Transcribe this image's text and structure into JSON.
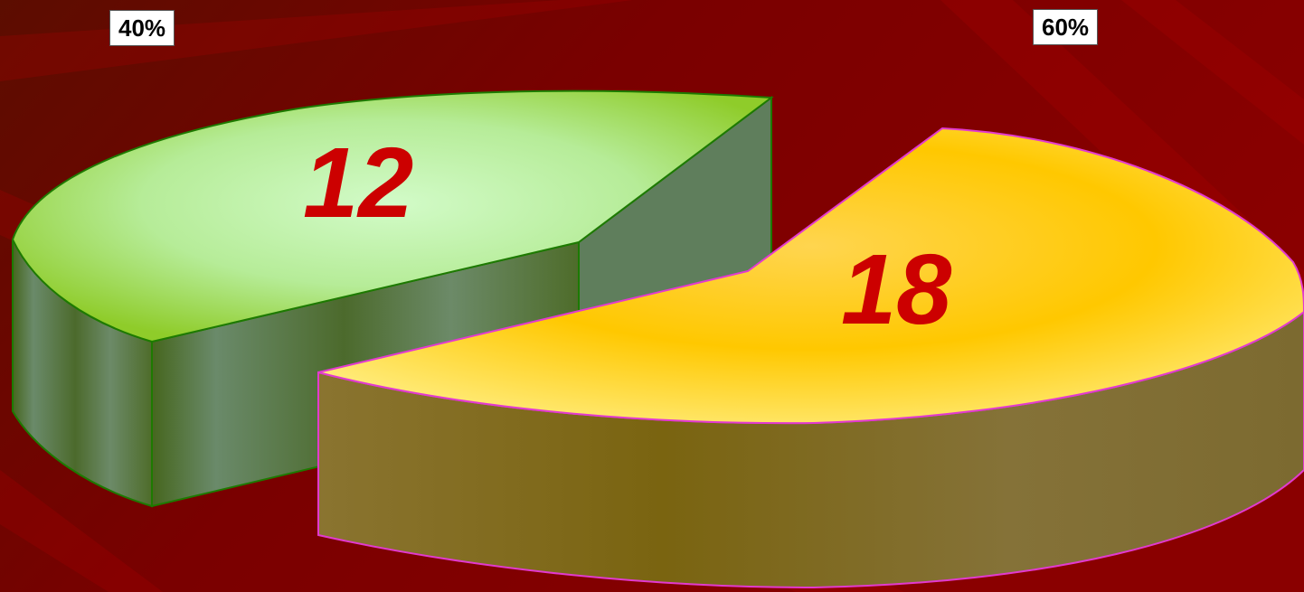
{
  "chart_data": {
    "type": "pie",
    "style": "3d-exploded",
    "slices": [
      {
        "value": 12,
        "value_label": "12",
        "percent_label": "40%",
        "top_color": "#c9f7b8",
        "rim_color": "#9ccc2a",
        "side_color": "#5a7a52",
        "edge_color": "#1d7a00"
      },
      {
        "value": 18,
        "value_label": "18",
        "percent_label": "60%",
        "top_color": "#ffd24a",
        "rim_color": "#ffe680",
        "side_color": "#7e6d1f",
        "edge_color": "#e23ad0"
      }
    ],
    "value_label_color": "#cc0000",
    "background_color": "#7d0000"
  }
}
